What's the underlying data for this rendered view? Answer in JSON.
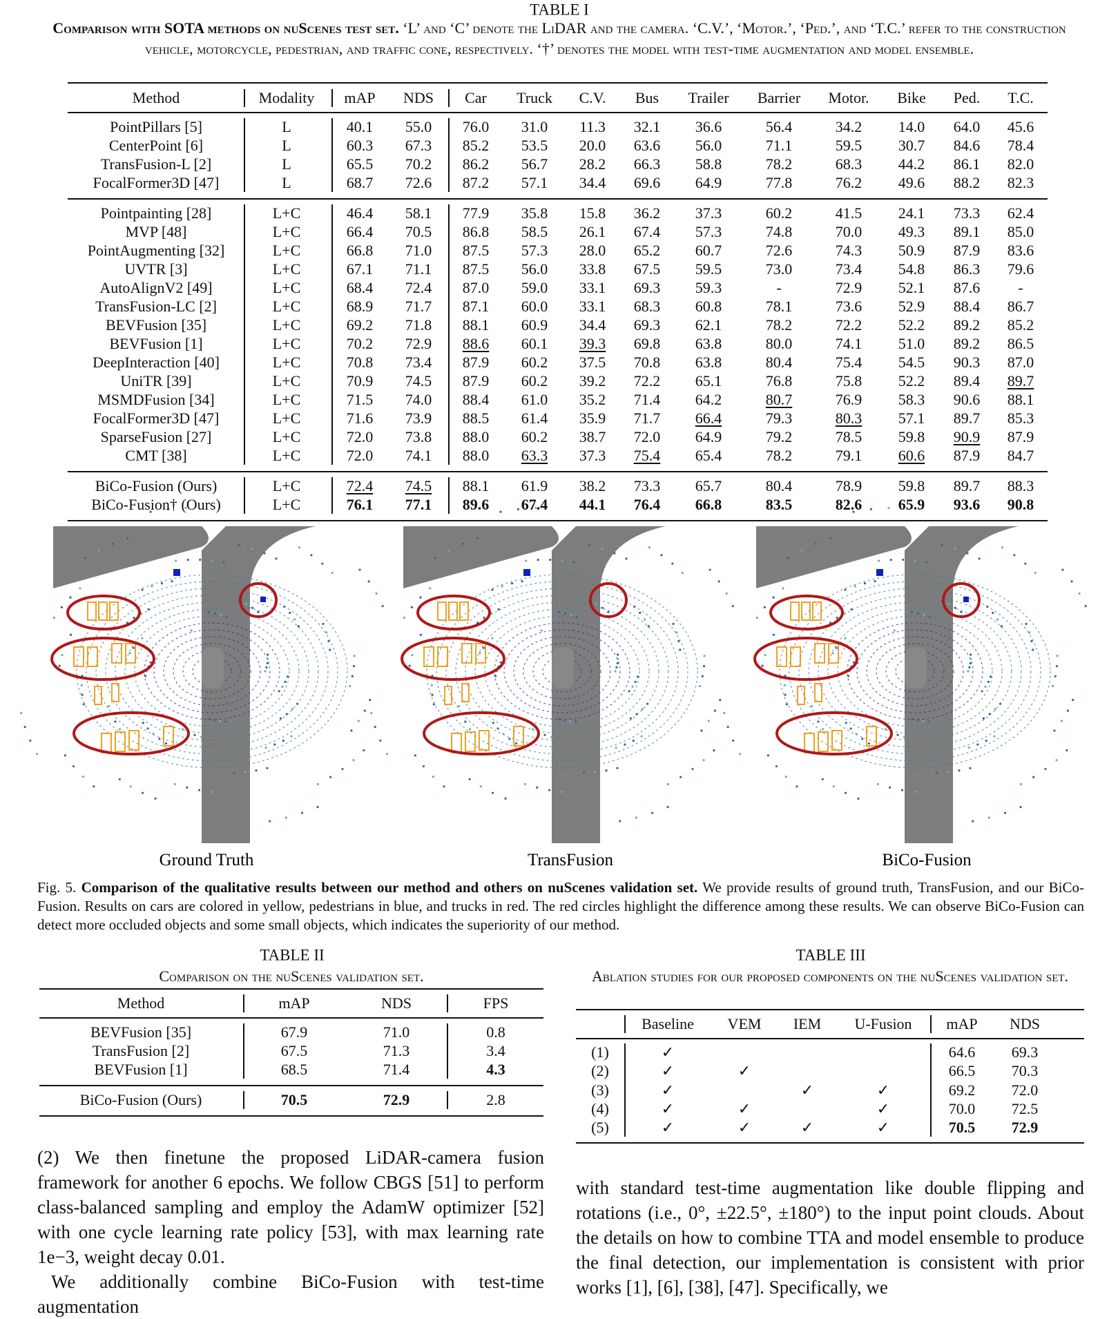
{
  "table1": {
    "label": "TABLE I",
    "caption_bold": "Comparison with SOTA methods on nuScenes test set.",
    "caption": "‘L’ and ‘C’ denote the LiDAR and the camera. ‘C.V.’, ‘Motor.’, ‘Ped.’, and ‘T.C.’ refer to the construction vehicle, motorcycle, pedestrian, and traffic cone, respectively. ‘†’ denotes the model with test-time augmentation and model ensemble.",
    "header": [
      "Method",
      "Modality",
      "mAP",
      "NDS",
      "Car",
      "Truck",
      "C.V.",
      "Bus",
      "Trailer",
      "Barrier",
      "Motor.",
      "Bike",
      "Ped.",
      "T.C."
    ],
    "groups": [
      [
        [
          "PointPillars [5]",
          "L",
          "40.1",
          "55.0",
          "76.0",
          "31.0",
          "11.3",
          "32.1",
          "36.6",
          "56.4",
          "34.2",
          "14.0",
          "64.0",
          "45.6"
        ],
        [
          "CenterPoint [6]",
          "L",
          "60.3",
          "67.3",
          "85.2",
          "53.5",
          "20.0",
          "63.6",
          "56.0",
          "71.1",
          "59.5",
          "30.7",
          "84.6",
          "78.4"
        ],
        [
          "TransFusion-L [2]",
          "L",
          "65.5",
          "70.2",
          "86.2",
          "56.7",
          "28.2",
          "66.3",
          "58.8",
          "78.2",
          "68.3",
          "44.2",
          "86.1",
          "82.0"
        ],
        [
          "FocalFormer3D [47]",
          "L",
          "68.7",
          "72.6",
          "87.2",
          "57.1",
          "34.4",
          "69.6",
          "64.9",
          "77.8",
          "76.2",
          "49.6",
          "88.2",
          "82.3"
        ]
      ],
      [
        [
          "Pointpainting [28]",
          "L+C",
          "46.4",
          "58.1",
          "77.9",
          "35.8",
          "15.8",
          "36.2",
          "37.3",
          "60.2",
          "41.5",
          "24.1",
          "73.3",
          "62.4"
        ],
        [
          "MVP [48]",
          "L+C",
          "66.4",
          "70.5",
          "86.8",
          "58.5",
          "26.1",
          "67.4",
          "57.3",
          "74.8",
          "70.0",
          "49.3",
          "89.1",
          "85.0"
        ],
        [
          "PointAugmenting [32]",
          "L+C",
          "66.8",
          "71.0",
          "87.5",
          "57.3",
          "28.0",
          "65.2",
          "60.7",
          "72.6",
          "74.3",
          "50.9",
          "87.9",
          "83.6"
        ],
        [
          "UVTR [3]",
          "L+C",
          "67.1",
          "71.1",
          "87.5",
          "56.0",
          "33.8",
          "67.5",
          "59.5",
          "73.0",
          "73.4",
          "54.8",
          "86.3",
          "79.6"
        ],
        [
          "AutoAlignV2 [49]",
          "L+C",
          "68.4",
          "72.4",
          "87.0",
          "59.0",
          "33.1",
          "69.3",
          "59.3",
          "-",
          "72.9",
          "52.1",
          "87.6",
          "-"
        ],
        [
          "TransFusion-LC [2]",
          "L+C",
          "68.9",
          "71.7",
          "87.1",
          "60.0",
          "33.1",
          "68.3",
          "60.8",
          "78.1",
          "73.6",
          "52.9",
          "88.4",
          "86.7"
        ],
        [
          "BEVFusion [35]",
          "L+C",
          "69.2",
          "71.8",
          "88.1",
          "60.9",
          "34.4",
          "69.3",
          "62.1",
          "78.2",
          "72.2",
          "52.2",
          "89.2",
          "85.2"
        ],
        [
          "BEVFusion [1]",
          "L+C",
          "70.2",
          "72.9",
          {
            "text": "88.6",
            "style": "underline"
          },
          "60.1",
          {
            "text": "39.3",
            "style": "underline"
          },
          "69.8",
          "63.8",
          "80.0",
          "74.1",
          "51.0",
          "89.2",
          "86.5"
        ],
        [
          "DeepInteraction [40]",
          "L+C",
          "70.8",
          "73.4",
          "87.9",
          "60.2",
          "37.5",
          "70.8",
          "63.8",
          "80.4",
          "75.4",
          "54.5",
          "90.3",
          "87.0"
        ],
        [
          "UniTR [39]",
          "L+C",
          "70.9",
          "74.5",
          "87.9",
          "60.2",
          "39.2",
          "72.2",
          "65.1",
          "76.8",
          "75.8",
          "52.2",
          "89.4",
          {
            "text": "89.7",
            "style": "underline"
          }
        ],
        [
          "MSMDFusion [34]",
          "L+C",
          "71.5",
          "74.0",
          "88.4",
          "61.0",
          "35.2",
          "71.4",
          "64.2",
          {
            "text": "80.7",
            "style": "underline"
          },
          "76.9",
          "58.3",
          "90.6",
          "88.1"
        ],
        [
          "FocalFormer3D [47]",
          "L+C",
          "71.6",
          "73.9",
          "88.5",
          "61.4",
          "35.9",
          "71.7",
          {
            "text": "66.4",
            "style": "underline"
          },
          "79.3",
          {
            "text": "80.3",
            "style": "underline"
          },
          "57.1",
          "89.7",
          "85.3"
        ],
        [
          "SparseFusion [27]",
          "L+C",
          "72.0",
          "73.8",
          "88.0",
          "60.2",
          "38.7",
          "72.0",
          "64.9",
          "79.2",
          "78.5",
          "59.8",
          {
            "text": "90.9",
            "style": "underline"
          },
          "87.9"
        ],
        [
          "CMT [38]",
          "L+C",
          "72.0",
          "74.1",
          "88.0",
          {
            "text": "63.3",
            "style": "underline"
          },
          "37.3",
          {
            "text": "75.4",
            "style": "underline"
          },
          "65.4",
          "78.2",
          "79.1",
          {
            "text": "60.6",
            "style": "underline"
          },
          "87.9",
          "84.7"
        ]
      ],
      [
        [
          "BiCo-Fusion (Ours)",
          "L+C",
          {
            "text": "72.4",
            "style": "underline"
          },
          {
            "text": "74.5",
            "style": "underline"
          },
          "88.1",
          "61.9",
          "38.2",
          "73.3",
          "65.7",
          "80.4",
          "78.9",
          "59.8",
          "89.7",
          "88.3"
        ],
        [
          "BiCo-Fusion† (Ours)",
          "L+C",
          {
            "text": "76.1",
            "style": "bold"
          },
          {
            "text": "77.1",
            "style": "bold"
          },
          {
            "text": "89.6",
            "style": "bold"
          },
          {
            "text": "67.4",
            "style": "bold"
          },
          {
            "text": "44.1",
            "style": "bold"
          },
          {
            "text": "76.4",
            "style": "bold"
          },
          {
            "text": "66.8",
            "style": "bold"
          },
          {
            "text": "83.5",
            "style": "bold"
          },
          {
            "text": "82.6",
            "style": "bold"
          },
          {
            "text": "65.9",
            "style": "bold"
          },
          {
            "text": "93.6",
            "style": "bold"
          },
          {
            "text": "90.8",
            "style": "bold"
          }
        ]
      ]
    ]
  },
  "figure": {
    "panels": [
      "Ground Truth",
      "TransFusion",
      "BiCo-Fusion"
    ],
    "label": "Fig. 5.",
    "caption_bold": "Comparison of the qualitative results between our method and others on nuScenes validation set.",
    "caption": "We provide results of ground truth, TransFusion, and our BiCo-Fusion. Results on cars are colored in yellow, pedestrians in blue, and trucks in red. The red circles highlight the difference among these results. We can observe BiCo-Fusion can detect more occluded objects and some small objects, which indicates the superiority of our method."
  },
  "table2": {
    "label": "TABLE II",
    "caption": "Comparison on the nuScenes validation set.",
    "header": [
      "Method",
      "mAP",
      "NDS",
      "FPS"
    ],
    "groups": [
      [
        [
          "BEVFusion [35]",
          "67.9",
          "71.0",
          "0.8"
        ],
        [
          "TransFusion [2]",
          "67.5",
          "71.3",
          "3.4"
        ],
        [
          "BEVFusion [1]",
          "68.5",
          "71.4",
          {
            "text": "4.3",
            "style": "bold"
          }
        ]
      ],
      [
        [
          "BiCo-Fusion (Ours)",
          {
            "text": "70.5",
            "style": "bold"
          },
          {
            "text": "72.9",
            "style": "bold"
          },
          "2.8"
        ]
      ]
    ]
  },
  "table3": {
    "label": "TABLE III",
    "caption": "Ablation studies for our proposed components on the nuScenes validation set.",
    "header": [
      null,
      "Baseline",
      "VEM",
      "IEM",
      "U-Fusion",
      "mAP",
      "NDS"
    ],
    "groups": [
      [
        [
          "(1)",
          "✓",
          null,
          null,
          null,
          "64.6",
          "69.3"
        ],
        [
          "(2)",
          "✓",
          "✓",
          null,
          null,
          "66.5",
          "70.3"
        ],
        [
          "(3)",
          "✓",
          null,
          "✓",
          "✓",
          "69.2",
          "72.0"
        ],
        [
          "(4)",
          "✓",
          "✓",
          null,
          "✓",
          "70.0",
          "72.5"
        ],
        [
          "(5)",
          "✓",
          "✓",
          "✓",
          "✓",
          {
            "text": "70.5",
            "style": "bold"
          },
          {
            "text": "72.9",
            "style": "bold"
          }
        ]
      ]
    ]
  },
  "body": {
    "left": [
      "(2) We then finetune the proposed LiDAR-camera fusion framework for another 6 epochs. We follow CBGS [51] to perform class-balanced sampling and employ the AdamW optimizer [52] with one cycle learning rate policy [53], with max learning rate 1e−3, weight decay 0.01.",
      "We additionally combine BiCo-Fusion with test-time augmentation"
    ],
    "right": [
      "with standard test-time augmentation like double flipping and rotations (i.e., 0°, ±22.5°, ±180°) to the input point clouds. About the details on how to combine TTA and model ensemble to produce the final detection, our implementation is consistent with prior works [1], [6], [38], [47]. Specifically, we"
    ]
  }
}
